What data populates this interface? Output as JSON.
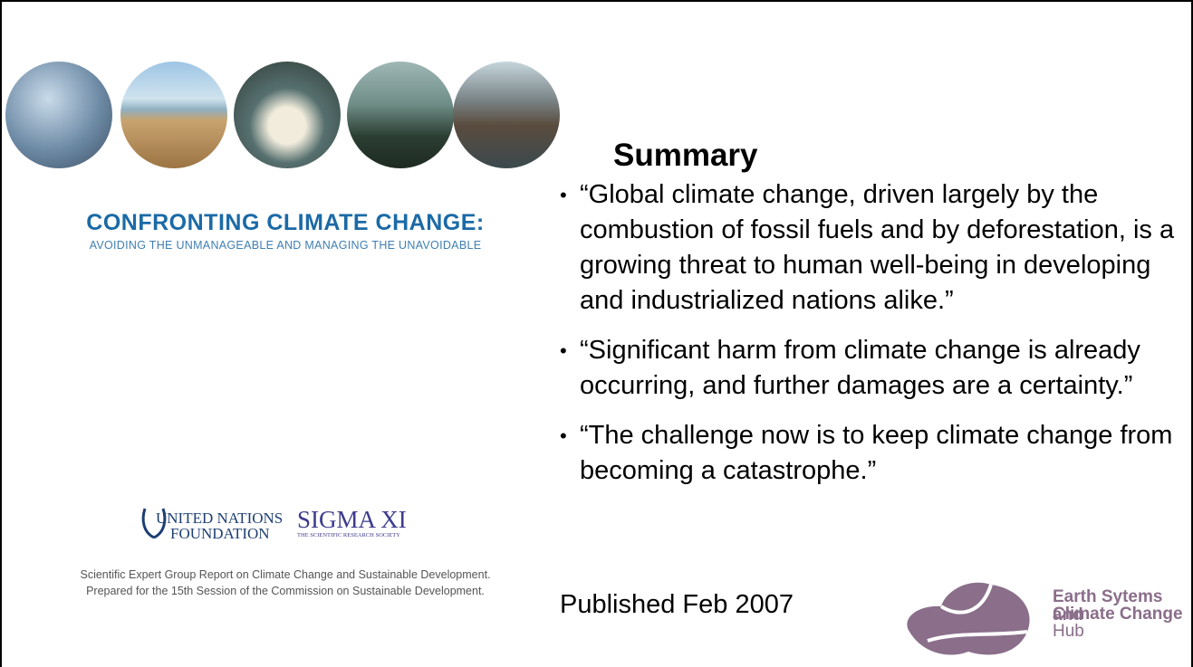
{
  "left": {
    "report_title": "CONFRONTING CLIMATE CHANGE:",
    "report_subtitle": "AVOIDING THE UNMANAGEABLE AND MANAGING THE UNAVOIDABLE",
    "logos": [
      "UNITED NATIONS",
      "FOUNDATION",
      "SIGMA XI",
      "THE SCIENTIFIC RESEARCH SOCIETY"
    ],
    "footnote": [
      "Scientific Expert Group Report on Climate Change and Sustainable Development.",
      "Prepared for the 15th Session of the Commission on Sustainable Development."
    ]
  },
  "right": {
    "heading": "Summary",
    "bullets": [
      "“Global climate change, driven largely by the combustion of fossil fuels and by deforestation, is a growing threat to human well-being in developing and industrialized nations alike.”",
      "“Significant harm from climate change is already occurring, and further damages are a certainty.”",
      "“The challenge now is to keep climate change from becoming a catastrophe.”"
    ],
    "published": "Published Feb 2007",
    "hub": [
      "Earth Sytems and",
      "Climate Change",
      "Hub"
    ]
  }
}
